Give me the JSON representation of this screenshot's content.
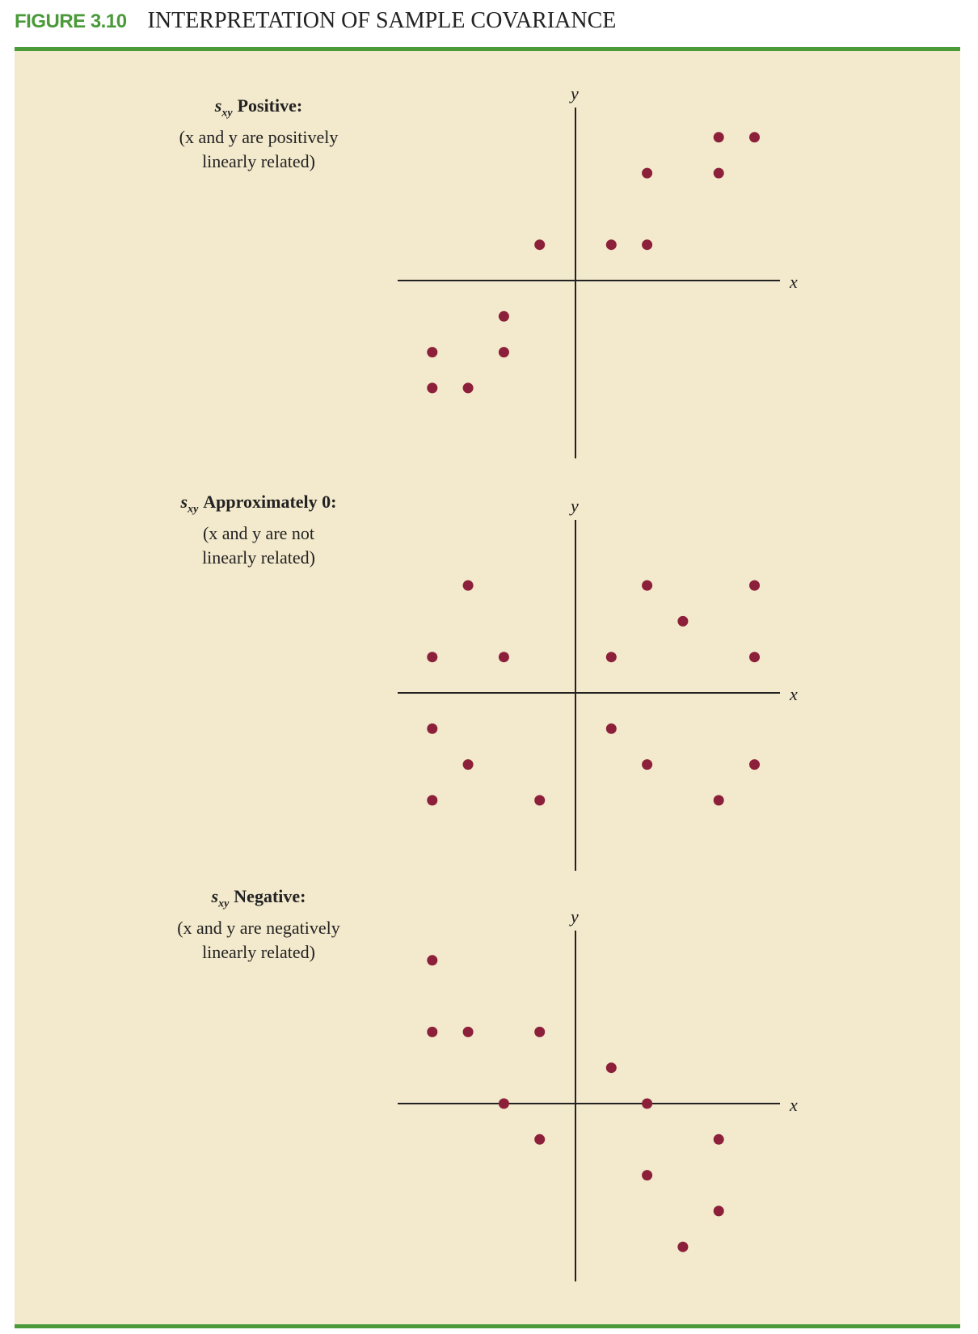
{
  "figure": {
    "label": "FIGURE 3.10",
    "title": "INTERPRETATION OF SAMPLE COVARIANCE"
  },
  "colors": {
    "accent": "#4a9a3a",
    "panel_background": "#f3e9cc",
    "point": "#8c1f3a"
  },
  "chart_data": [
    {
      "type": "scatter",
      "symbol": "s",
      "subscript": "xy",
      "heading": "Positive:",
      "description_lines": [
        "(x and y are positively",
        "linearly related)"
      ],
      "xlabel": "x",
      "ylabel": "y",
      "xlim": [
        -5,
        6
      ],
      "ylim": [
        -5,
        5
      ],
      "grid": false,
      "points": [
        {
          "x": 4,
          "y": 4
        },
        {
          "x": 5,
          "y": 4
        },
        {
          "x": 2,
          "y": 3
        },
        {
          "x": 4,
          "y": 3
        },
        {
          "x": -1,
          "y": 1
        },
        {
          "x": 1,
          "y": 1
        },
        {
          "x": 2,
          "y": 1
        },
        {
          "x": -2,
          "y": -1
        },
        {
          "x": -4,
          "y": -2
        },
        {
          "x": -2,
          "y": -2
        },
        {
          "x": -4,
          "y": -3
        },
        {
          "x": -3,
          "y": -3
        }
      ]
    },
    {
      "type": "scatter",
      "symbol": "s",
      "subscript": "xy",
      "heading": "Approximately 0:",
      "description_lines": [
        "(x and y are not",
        "linearly related)"
      ],
      "xlabel": "x",
      "ylabel": "y",
      "xlim": [
        -5,
        6
      ],
      "ylim": [
        -5,
        5
      ],
      "grid": false,
      "points": [
        {
          "x": -3,
          "y": 3
        },
        {
          "x": 2,
          "y": 3
        },
        {
          "x": 5,
          "y": 3
        },
        {
          "x": 3,
          "y": 2
        },
        {
          "x": -4,
          "y": 1
        },
        {
          "x": -2,
          "y": 1
        },
        {
          "x": 1,
          "y": 1
        },
        {
          "x": 5,
          "y": 1
        },
        {
          "x": -4,
          "y": -1
        },
        {
          "x": 1,
          "y": -1
        },
        {
          "x": -3,
          "y": -2
        },
        {
          "x": 2,
          "y": -2
        },
        {
          "x": 5,
          "y": -2
        },
        {
          "x": -4,
          "y": -3
        },
        {
          "x": -1,
          "y": -3
        },
        {
          "x": 4,
          "y": -3
        }
      ]
    },
    {
      "type": "scatter",
      "symbol": "s",
      "subscript": "xy",
      "heading": "Negative:",
      "description_lines": [
        "(x and y are negatively",
        "linearly related)"
      ],
      "xlabel": "x",
      "ylabel": "y",
      "xlim": [
        -5,
        6
      ],
      "ylim": [
        -5,
        5
      ],
      "grid": false,
      "points": [
        {
          "x": -4,
          "y": 4
        },
        {
          "x": -4,
          "y": 2
        },
        {
          "x": -3,
          "y": 2
        },
        {
          "x": -1,
          "y": 2
        },
        {
          "x": 1,
          "y": 1
        },
        {
          "x": -2,
          "y": 0
        },
        {
          "x": 2,
          "y": 0
        },
        {
          "x": -1,
          "y": -1
        },
        {
          "x": 4,
          "y": -1
        },
        {
          "x": 2,
          "y": -2
        },
        {
          "x": 4,
          "y": -3
        },
        {
          "x": 3,
          "y": -4
        }
      ]
    }
  ]
}
